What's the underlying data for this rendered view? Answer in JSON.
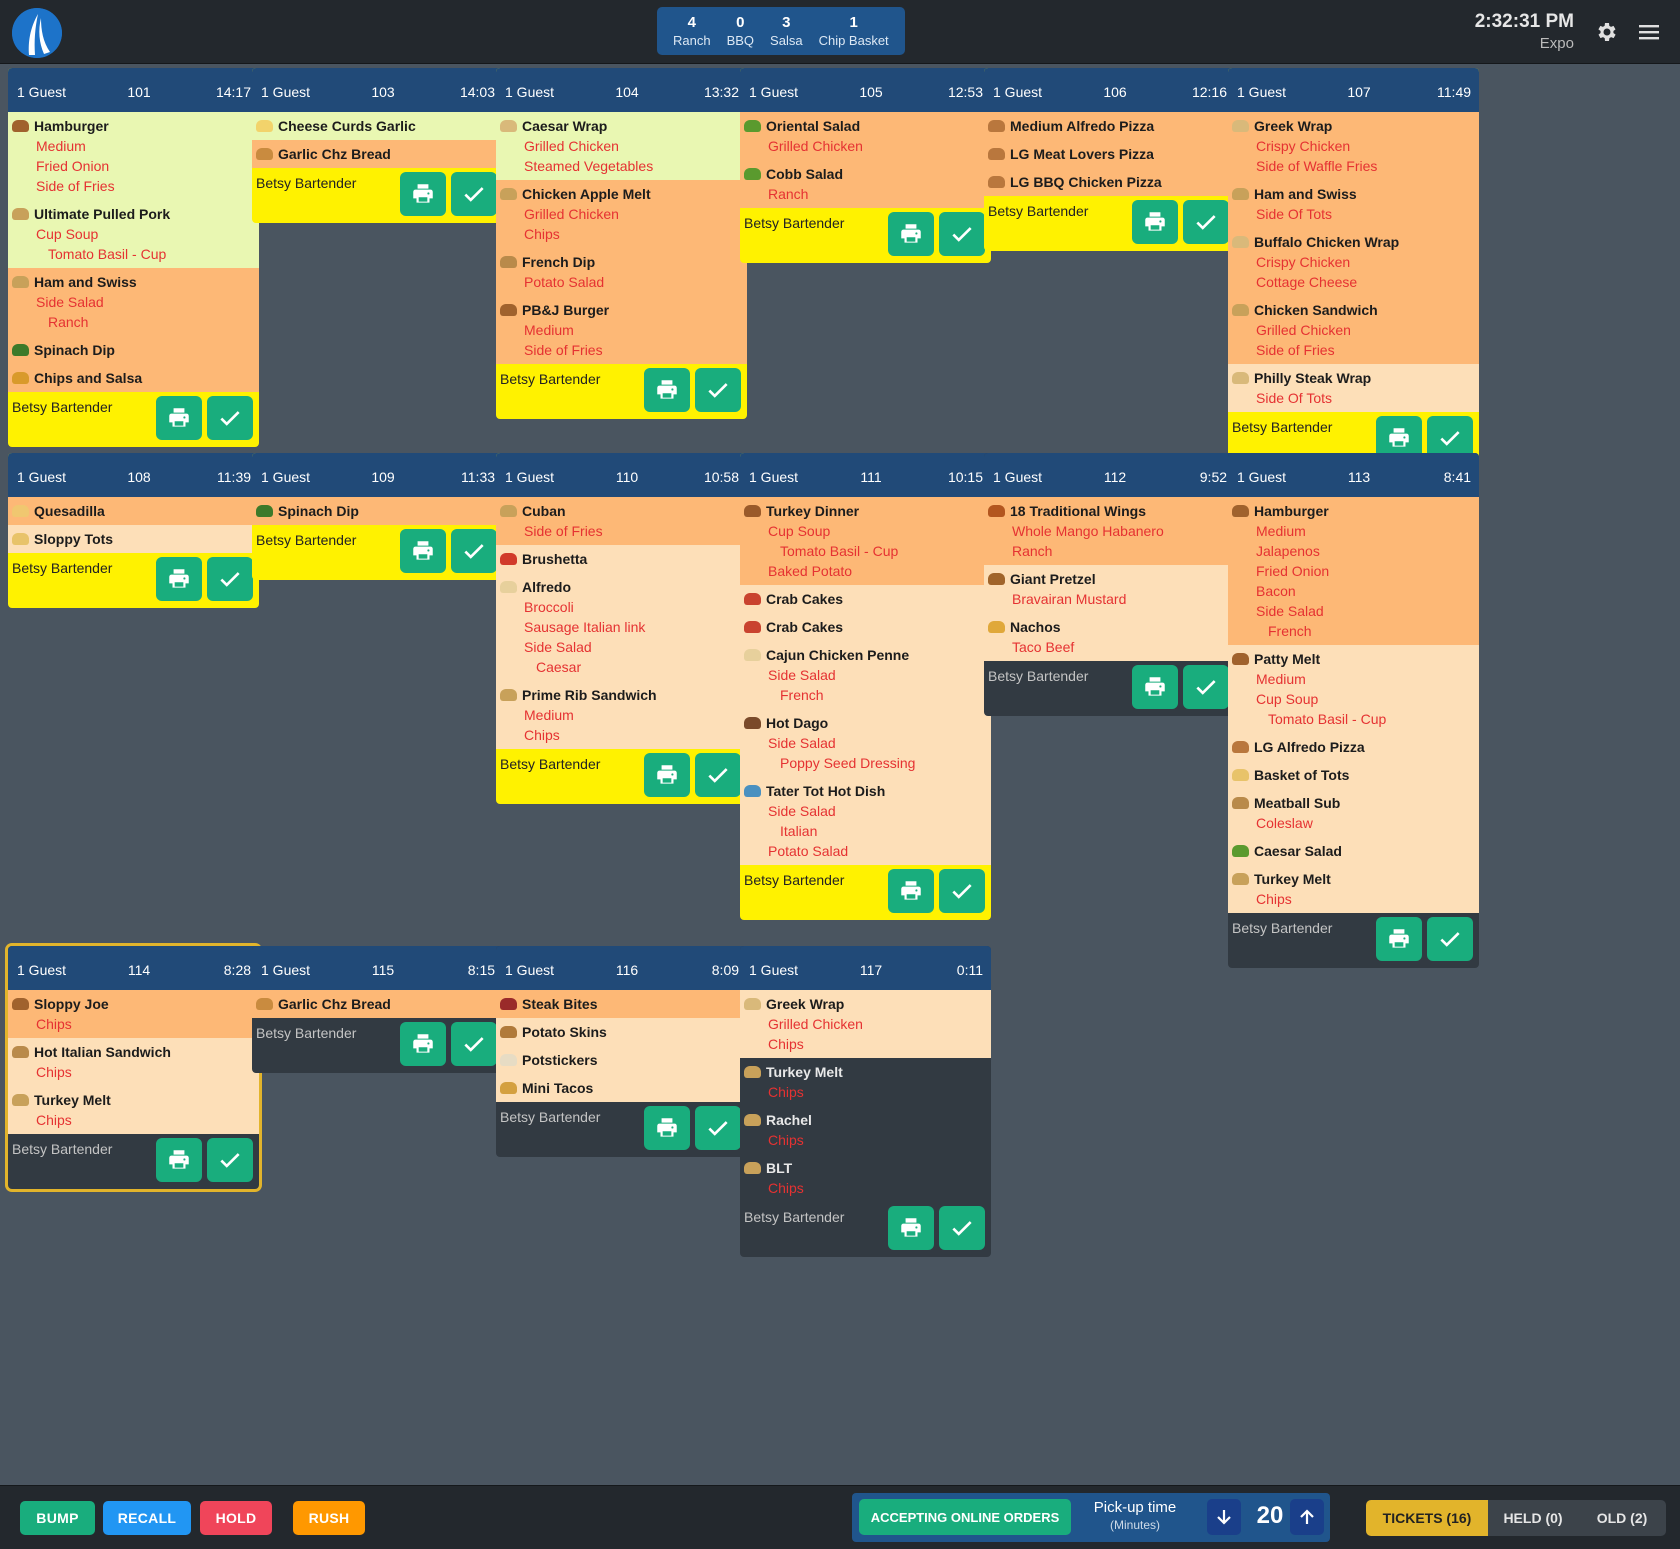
{
  "header": {
    "counts": [
      {
        "count": "4",
        "label": "Ranch"
      },
      {
        "count": "0",
        "label": "BBQ"
      },
      {
        "count": "3",
        "label": "Salsa"
      },
      {
        "count": "1",
        "label": "Chip Basket"
      }
    ],
    "time": "2:32:31 PM",
    "mode": "Expo"
  },
  "colors": {
    "alert_yellow": "#fff200",
    "status_green": "#e9f7b2",
    "status_orange": "#fdb876",
    "status_peach": "#fddfb8",
    "header_blue": "#214a78",
    "action_green": "#19ad7d",
    "mod_red": "#e53232"
  },
  "tickets": [
    {
      "guests": "1 Guest",
      "number": "101",
      "elapsed": "14:17",
      "server": "Betsy Bartender",
      "alert": true,
      "items": [
        {
          "name": "Hamburger",
          "icon": "burger-icon",
          "status": "green",
          "mods": [
            {
              "t": "Medium",
              "d": 1
            },
            {
              "t": "Fried Onion",
              "d": 1
            },
            {
              "t": "Side of Fries",
              "d": 1
            }
          ]
        },
        {
          "name": "Ultimate Pulled Pork",
          "icon": "sandwich-icon",
          "status": "green",
          "mods": [
            {
              "t": "Cup Soup",
              "d": 1
            },
            {
              "t": "Tomato Basil - Cup",
              "d": 2
            }
          ]
        },
        {
          "name": "Ham and Swiss",
          "icon": "sandwich-icon",
          "status": "orange",
          "mods": [
            {
              "t": "Side Salad",
              "d": 1
            },
            {
              "t": "Ranch",
              "d": 2
            }
          ]
        },
        {
          "name": "Spinach Dip",
          "icon": "spinach-icon",
          "status": "orange",
          "mods": []
        },
        {
          "name": "Chips and Salsa",
          "icon": "chips-icon",
          "status": "orange",
          "mods": []
        }
      ]
    },
    {
      "guests": "1 Guest",
      "number": "103",
      "elapsed": "14:03",
      "server": "Betsy Bartender",
      "alert": true,
      "items": [
        {
          "name": "Cheese Curds Garlic",
          "icon": "cheese-icon",
          "status": "green",
          "mods": []
        },
        {
          "name": "Garlic Chz Bread",
          "icon": "bread-icon",
          "status": "orange",
          "mods": []
        }
      ]
    },
    {
      "guests": "1 Guest",
      "number": "104",
      "elapsed": "13:32",
      "server": "Betsy Bartender",
      "alert": true,
      "items": [
        {
          "name": "Caesar Wrap",
          "icon": "wrap-icon",
          "status": "green",
          "mods": [
            {
              "t": "Grilled Chicken",
              "d": 1
            },
            {
              "t": "Steamed Vegetables",
              "d": 1
            }
          ]
        },
        {
          "name": "Chicken Apple Melt",
          "icon": "sandwich-icon",
          "status": "orange",
          "mods": [
            {
              "t": "Grilled Chicken",
              "d": 1
            },
            {
              "t": "Chips",
              "d": 1
            }
          ]
        },
        {
          "name": "French Dip",
          "icon": "sub-icon",
          "status": "orange",
          "mods": [
            {
              "t": "Potato Salad",
              "d": 1
            }
          ]
        },
        {
          "name": "PB&J Burger",
          "icon": "burger-icon",
          "status": "orange",
          "mods": [
            {
              "t": "Medium",
              "d": 1
            },
            {
              "t": "Side of Fries",
              "d": 1
            }
          ]
        }
      ]
    },
    {
      "guests": "1 Guest",
      "number": "105",
      "elapsed": "12:53",
      "server": "Betsy Bartender",
      "alert": true,
      "items": [
        {
          "name": "Oriental Salad",
          "icon": "salad-icon",
          "status": "orange",
          "mods": [
            {
              "t": "Grilled Chicken",
              "d": 1
            }
          ]
        },
        {
          "name": "Cobb Salad",
          "icon": "salad-icon",
          "status": "orange",
          "mods": [
            {
              "t": "Ranch",
              "d": 1
            }
          ]
        }
      ]
    },
    {
      "guests": "1 Guest",
      "number": "106",
      "elapsed": "12:16",
      "server": "Betsy Bartender",
      "alert": true,
      "items": [
        {
          "name": "Medium Alfredo Pizza",
          "icon": "pizza-icon",
          "status": "orange",
          "mods": []
        },
        {
          "name": "LG Meat Lovers Pizza",
          "icon": "pizza-icon",
          "status": "orange",
          "mods": []
        },
        {
          "name": "LG BBQ Chicken Pizza",
          "icon": "pizza-icon",
          "status": "orange",
          "mods": []
        }
      ]
    },
    {
      "guests": "1 Guest",
      "number": "107",
      "elapsed": "11:49",
      "server": "Betsy Bartender",
      "alert": true,
      "items": [
        {
          "name": "Greek Wrap",
          "icon": "wrap-icon",
          "status": "orange",
          "mods": [
            {
              "t": "Crispy Chicken",
              "d": 1
            },
            {
              "t": "Side of Waffle Fries",
              "d": 1
            }
          ]
        },
        {
          "name": "Ham and Swiss",
          "icon": "sandwich-icon",
          "status": "orange",
          "mods": [
            {
              "t": "Side Of Tots",
              "d": 1
            }
          ]
        },
        {
          "name": "Buffalo Chicken Wrap",
          "icon": "wrap-icon",
          "status": "orange",
          "mods": [
            {
              "t": "Crispy Chicken",
              "d": 1
            },
            {
              "t": "Cottage Cheese",
              "d": 1
            }
          ]
        },
        {
          "name": "Chicken Sandwich",
          "icon": "sandwich-icon",
          "status": "orange",
          "mods": [
            {
              "t": "Grilled Chicken",
              "d": 1
            },
            {
              "t": "Side of Fries",
              "d": 1
            }
          ]
        },
        {
          "name": "Philly Steak Wrap",
          "icon": "wrap-icon",
          "status": "peach",
          "mods": [
            {
              "t": "Side Of Tots",
              "d": 1
            }
          ]
        }
      ]
    },
    {
      "guests": "1 Guest",
      "number": "108",
      "elapsed": "11:39",
      "server": "Betsy Bartender",
      "alert": true,
      "items": [
        {
          "name": "Quesadilla",
          "icon": "quesadilla-icon",
          "status": "orange",
          "mods": []
        },
        {
          "name": "Sloppy Tots",
          "icon": "tots-icon",
          "status": "peach",
          "mods": []
        }
      ]
    },
    {
      "guests": "1 Guest",
      "number": "109",
      "elapsed": "11:33",
      "server": "Betsy Bartender",
      "alert": true,
      "items": [
        {
          "name": "Spinach Dip",
          "icon": "spinach-icon",
          "status": "orange",
          "mods": []
        }
      ]
    },
    {
      "guests": "1 Guest",
      "number": "110",
      "elapsed": "10:58",
      "server": "Betsy Bartender",
      "alert": true,
      "items": [
        {
          "name": "Cuban",
          "icon": "sandwich-icon",
          "status": "orange",
          "mods": [
            {
              "t": "Side of Fries",
              "d": 1
            }
          ]
        },
        {
          "name": "Brushetta",
          "icon": "tomato-icon",
          "status": "peach",
          "mods": []
        },
        {
          "name": "Alfredo",
          "icon": "pasta-icon",
          "status": "peach",
          "mods": [
            {
              "t": "Broccoli",
              "d": 1
            },
            {
              "t": "Sausage Italian link",
              "d": 1
            },
            {
              "t": "Side Salad",
              "d": 1
            },
            {
              "t": "Caesar",
              "d": 2
            }
          ]
        },
        {
          "name": "Prime Rib Sandwich",
          "icon": "sandwich-icon",
          "status": "peach",
          "mods": [
            {
              "t": "Medium",
              "d": 1
            },
            {
              "t": "Chips",
              "d": 1
            }
          ]
        }
      ]
    },
    {
      "guests": "1 Guest",
      "number": "111",
      "elapsed": "10:15",
      "server": "Betsy Bartender",
      "alert": true,
      "items": [
        {
          "name": "Turkey Dinner",
          "icon": "turkey-icon",
          "status": "orange",
          "mods": [
            {
              "t": "Cup Soup",
              "d": 1
            },
            {
              "t": "Tomato Basil - Cup",
              "d": 2
            },
            {
              "t": "Baked Potato",
              "d": 1
            }
          ]
        },
        {
          "name": "Crab Cakes",
          "icon": "crab-icon",
          "status": "peach",
          "mods": []
        },
        {
          "name": "Crab Cakes",
          "icon": "crab-icon",
          "status": "peach",
          "mods": []
        },
        {
          "name": "Cajun Chicken Penne",
          "icon": "pasta-icon",
          "status": "peach",
          "mods": [
            {
              "t": "Side Salad",
              "d": 1
            },
            {
              "t": "French",
              "d": 2
            }
          ]
        },
        {
          "name": "Hot Dago",
          "icon": "meatball-icon",
          "status": "peach",
          "mods": [
            {
              "t": "Side Salad",
              "d": 1
            },
            {
              "t": "Poppy Seed Dressing",
              "d": 2
            }
          ]
        },
        {
          "name": "Tater Tot Hot Dish",
          "icon": "dish-icon",
          "status": "peach",
          "mods": [
            {
              "t": "Side Salad",
              "d": 1
            },
            {
              "t": "Italian",
              "d": 2
            },
            {
              "t": "Potato Salad",
              "d": 1
            }
          ]
        }
      ]
    },
    {
      "guests": "1 Guest",
      "number": "112",
      "elapsed": "9:52",
      "server": "Betsy Bartender",
      "alert": false,
      "items": [
        {
          "name": "18 Traditional Wings",
          "icon": "wings-icon",
          "status": "orange",
          "mods": [
            {
              "t": "Whole Mango Habanero",
              "d": 1
            },
            {
              "t": "Ranch",
              "d": 1
            }
          ]
        },
        {
          "name": "Giant Pretzel",
          "icon": "pretzel-icon",
          "status": "peach",
          "mods": [
            {
              "t": "Bravairan Mustard",
              "d": 1
            }
          ]
        },
        {
          "name": "Nachos",
          "icon": "nachos-icon",
          "status": "peach",
          "mods": [
            {
              "t": "Taco Beef",
              "d": 1
            }
          ]
        }
      ]
    },
    {
      "guests": "1 Guest",
      "number": "113",
      "elapsed": "8:41",
      "server": "Betsy Bartender",
      "alert": false,
      "items": [
        {
          "name": "Hamburger",
          "icon": "burger-icon",
          "status": "orange",
          "mods": [
            {
              "t": "Medium",
              "d": 1
            },
            {
              "t": "Jalapenos",
              "d": 1
            },
            {
              "t": "Fried Onion",
              "d": 1
            },
            {
              "t": "Bacon",
              "d": 1
            },
            {
              "t": "Side Salad",
              "d": 1
            },
            {
              "t": "French",
              "d": 2
            }
          ]
        },
        {
          "name": "Patty Melt",
          "icon": "burger-icon",
          "status": "peach",
          "mods": [
            {
              "t": "Medium",
              "d": 1
            },
            {
              "t": "Cup Soup",
              "d": 1
            },
            {
              "t": "Tomato Basil - Cup",
              "d": 2
            }
          ]
        },
        {
          "name": "LG Alfredo Pizza",
          "icon": "pizza-icon",
          "status": "peach",
          "mods": []
        },
        {
          "name": "Basket of Tots",
          "icon": "tots-icon",
          "status": "peach",
          "mods": []
        },
        {
          "name": "Meatball Sub",
          "icon": "sub-icon",
          "status": "peach",
          "mods": [
            {
              "t": "Coleslaw",
              "d": 1
            }
          ]
        },
        {
          "name": "Caesar Salad",
          "icon": "salad-icon",
          "status": "peach",
          "mods": []
        },
        {
          "name": "Turkey Melt",
          "icon": "sandwich-icon",
          "status": "peach",
          "mods": [
            {
              "t": "Chips",
              "d": 1
            }
          ]
        }
      ]
    },
    {
      "guests": "1 Guest",
      "number": "114",
      "elapsed": "8:28",
      "server": "Betsy Bartender",
      "alert": false,
      "selected": true,
      "items": [
        {
          "name": "Sloppy Joe",
          "icon": "burger-icon",
          "status": "orange",
          "mods": [
            {
              "t": "Chips",
              "d": 1
            }
          ]
        },
        {
          "name": "Hot Italian Sandwich",
          "icon": "sub-icon",
          "status": "peach",
          "mods": [
            {
              "t": "Chips",
              "d": 1
            }
          ]
        },
        {
          "name": "Turkey Melt",
          "icon": "sandwich-icon",
          "status": "peach",
          "mods": [
            {
              "t": "Chips",
              "d": 1
            }
          ]
        }
      ]
    },
    {
      "guests": "1 Guest",
      "number": "115",
      "elapsed": "8:15",
      "server": "Betsy Bartender",
      "alert": false,
      "items": [
        {
          "name": "Garlic Chz Bread",
          "icon": "bread-icon",
          "status": "orange",
          "mods": []
        }
      ]
    },
    {
      "guests": "1 Guest",
      "number": "116",
      "elapsed": "8:09",
      "server": "Betsy Bartender",
      "alert": false,
      "items": [
        {
          "name": "Steak Bites",
          "icon": "steak-icon",
          "status": "orange",
          "mods": []
        },
        {
          "name": "Potato Skins",
          "icon": "potato-icon",
          "status": "peach",
          "mods": []
        },
        {
          "name": "Potstickers",
          "icon": "potsticker-icon",
          "status": "peach",
          "mods": []
        },
        {
          "name": "Mini Tacos",
          "icon": "taco-icon",
          "status": "peach",
          "mods": []
        }
      ]
    },
    {
      "guests": "1 Guest",
      "number": "117",
      "elapsed": "0:11",
      "server": "Betsy Bartender",
      "alert": false,
      "items": [
        {
          "name": "Greek Wrap",
          "icon": "wrap-icon",
          "status": "peach",
          "mods": [
            {
              "t": "Grilled Chicken",
              "d": 1
            },
            {
              "t": "Chips",
              "d": 1
            }
          ]
        },
        {
          "name": "Turkey Melt",
          "icon": "sandwich-icon",
          "status": "gray",
          "mods": [
            {
              "t": "Chips",
              "d": 1
            }
          ]
        },
        {
          "name": "Rachel",
          "icon": "sandwich-icon",
          "status": "gray",
          "mods": [
            {
              "t": "Chips",
              "d": 1
            }
          ]
        },
        {
          "name": "BLT",
          "icon": "sandwich-icon",
          "status": "gray",
          "mods": [
            {
              "t": "Chips",
              "d": 1
            }
          ]
        }
      ]
    }
  ],
  "footer": {
    "actions": [
      {
        "label": "BUMP",
        "color": "#19ad7d"
      },
      {
        "label": "RECALL",
        "color": "#2196f3"
      },
      {
        "label": "HOLD",
        "color": "#f0455a"
      },
      {
        "label": "RUSH",
        "color": "#ff9800"
      }
    ],
    "online_label": "ACCEPTING ONLINE ORDERS",
    "pickup_label": "Pick-up time",
    "pickup_unit": "(Minutes)",
    "pickup_value": "20",
    "tabs": [
      {
        "label": "TICKETS (16)",
        "active": true
      },
      {
        "label": "HELD (0)",
        "active": false
      },
      {
        "label": "OLD (2)",
        "active": false
      }
    ]
  }
}
